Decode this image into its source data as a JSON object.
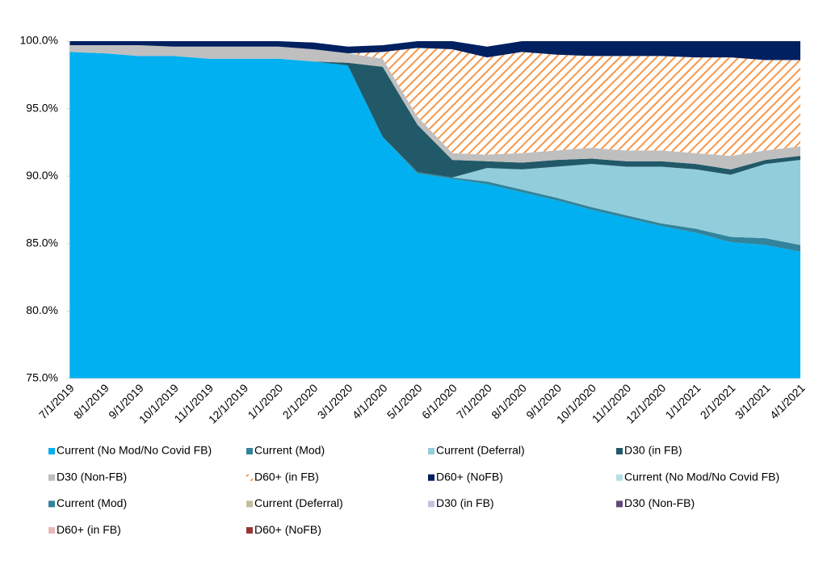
{
  "chart_data": {
    "type": "stacked_area",
    "categories": [
      "7/1/2019",
      "8/1/2019",
      "9/1/2019",
      "10/1/2019",
      "11/1/2019",
      "12/1/2019",
      "1/1/2020",
      "2/1/2020",
      "3/1/2020",
      "4/1/2020",
      "5/1/2020",
      "6/1/2020",
      "7/1/2020",
      "8/1/2020",
      "9/1/2020",
      "10/1/2020",
      "11/1/2020",
      "12/1/2020",
      "1/1/2021",
      "2/1/2021",
      "3/1/2021",
      "4/1/2021"
    ],
    "ylim": [
      75,
      100
    ],
    "yticks": [
      {
        "value": 75,
        "label": "75.0%"
      },
      {
        "value": 80,
        "label": "80.0%"
      },
      {
        "value": 85,
        "label": "85.0%"
      },
      {
        "value": 90,
        "label": "90.0%"
      },
      {
        "value": 95,
        "label": "95.0%"
      },
      {
        "value": 100,
        "label": "100.0%"
      }
    ],
    "grid": false,
    "series": [
      {
        "name": "Current (No Mod/No Covid FB)",
        "color": "#00b0f0",
        "values": [
          99.2,
          99.1,
          98.9,
          98.9,
          98.7,
          98.7,
          98.7,
          98.5,
          98.2,
          92.9,
          90.2,
          89.8,
          89.4,
          88.8,
          88.2,
          87.5,
          86.9,
          86.3,
          85.8,
          85.1,
          84.9,
          84.4
        ]
      },
      {
        "name": "Current (Mod)",
        "color": "#31849b",
        "values": [
          0,
          0,
          0,
          0,
          0,
          0,
          0,
          0,
          0,
          0,
          0.1,
          0.1,
          0.2,
          0.2,
          0.2,
          0.2,
          0.2,
          0.2,
          0.3,
          0.4,
          0.5,
          0.5
        ]
      },
      {
        "name": "Current (Deferral)",
        "color": "#92cddc",
        "values": [
          0,
          0,
          0,
          0,
          0,
          0,
          0,
          0,
          0,
          0,
          0,
          0,
          1.0,
          1.5,
          2.3,
          3.2,
          3.6,
          4.2,
          4.4,
          4.6,
          5.5,
          6.3
        ]
      },
      {
        "name": "D30 (in FB)",
        "color": "#215968",
        "values": [
          0,
          0,
          0,
          0,
          0,
          0,
          0,
          0,
          0.2,
          5.2,
          3.5,
          1.3,
          0.5,
          0.5,
          0.5,
          0.4,
          0.4,
          0.4,
          0.4,
          0.4,
          0.3,
          0.3
        ]
      },
      {
        "name": "D30 (Non-FB)",
        "color": "#bfbfbf",
        "values": [
          0.5,
          0.6,
          0.8,
          0.7,
          0.9,
          0.9,
          0.9,
          0.9,
          0.7,
          0.6,
          0.6,
          0.5,
          0.5,
          0.7,
          0.7,
          0.8,
          0.8,
          0.8,
          0.8,
          1.0,
          0.7,
          0.7
        ]
      },
      {
        "name": "D60+ (in FB)",
        "color": "#f79646",
        "pattern": "hatch",
        "values": [
          0,
          0,
          0,
          0,
          0,
          0,
          0,
          0,
          0,
          0.5,
          5.1,
          7.7,
          7.2,
          7.5,
          7.1,
          6.8,
          7.0,
          7.0,
          7.1,
          7.3,
          6.7,
          6.4
        ]
      },
      {
        "name": "D60+ (NoFB)",
        "color": "#002060",
        "values": [
          0.3,
          0.3,
          0.3,
          0.4,
          0.4,
          0.4,
          0.4,
          0.5,
          0.5,
          0.5,
          0.5,
          0.6,
          0.8,
          0.8,
          1.0,
          1.1,
          1.1,
          1.1,
          1.2,
          1.2,
          1.4,
          1.4
        ]
      },
      {
        "name": "Current (No Mod/No Covid FB)",
        "color": "#b7dee8",
        "values": [
          null,
          null,
          null,
          null,
          null,
          null,
          null,
          null,
          null,
          null,
          null,
          null,
          null,
          null,
          null,
          null,
          null,
          null,
          null,
          null,
          null,
          null
        ]
      },
      {
        "name": "Current (Mod)",
        "color": "#31849b",
        "values": [
          null,
          null,
          null,
          null,
          null,
          null,
          null,
          null,
          null,
          null,
          null,
          null,
          null,
          null,
          null,
          null,
          null,
          null,
          null,
          null,
          null,
          null
        ]
      },
      {
        "name": "Current (Deferral)",
        "color": "#c4bd97",
        "values": [
          null,
          null,
          null,
          null,
          null,
          null,
          null,
          null,
          null,
          null,
          null,
          null,
          null,
          null,
          null,
          null,
          null,
          null,
          null,
          null,
          null,
          null
        ]
      },
      {
        "name": "D30 (in FB)",
        "color": "#ccc0da",
        "values": [
          null,
          null,
          null,
          null,
          null,
          null,
          null,
          null,
          null,
          null,
          null,
          null,
          null,
          null,
          null,
          null,
          null,
          null,
          null,
          null,
          null,
          null
        ]
      },
      {
        "name": "D30 (Non-FB)",
        "color": "#60497a",
        "values": [
          null,
          null,
          null,
          null,
          null,
          null,
          null,
          null,
          null,
          null,
          null,
          null,
          null,
          null,
          null,
          null,
          null,
          null,
          null,
          null,
          null,
          null
        ]
      },
      {
        "name": "D60+ (in FB)",
        "color": "#e6b9b8",
        "values": [
          null,
          null,
          null,
          null,
          null,
          null,
          null,
          null,
          null,
          null,
          null,
          null,
          null,
          null,
          null,
          null,
          null,
          null,
          null,
          null,
          null,
          null
        ]
      },
      {
        "name": "D60+ (NoFB)",
        "color": "#953735",
        "values": [
          null,
          null,
          null,
          null,
          null,
          null,
          null,
          null,
          null,
          null,
          null,
          null,
          null,
          null,
          null,
          null,
          null,
          null,
          null,
          null,
          null,
          null
        ]
      }
    ]
  }
}
